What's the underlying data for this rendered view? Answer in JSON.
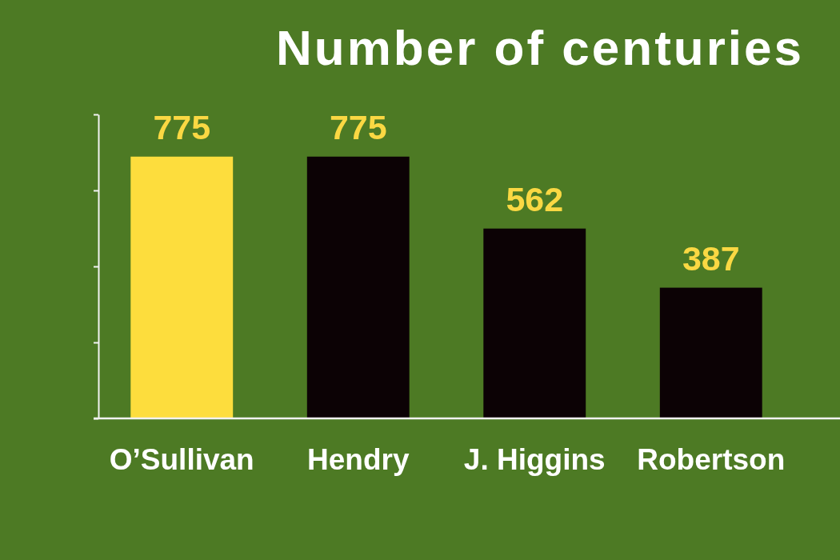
{
  "chart_data": {
    "type": "bar",
    "title": "Number of centuries",
    "categories": [
      "O’Sullivan",
      "Hendry",
      "J. Higgins",
      "Robertson"
    ],
    "values": [
      775,
      775,
      562,
      387
    ],
    "colors": [
      "#fddd3d",
      "#0c0205",
      "#0c0205",
      "#0c0205"
    ],
    "ylim": [
      0,
      900
    ],
    "yticks": [
      {
        "value": 0,
        "label": null
      },
      {
        "value": 225,
        "label": null
      },
      {
        "value": 450,
        "label": null
      },
      {
        "value": 675,
        "label": null
      },
      {
        "value": 900,
        "label": null
      }
    ],
    "tick_labels": "x",
    "data_labels": true
  }
}
